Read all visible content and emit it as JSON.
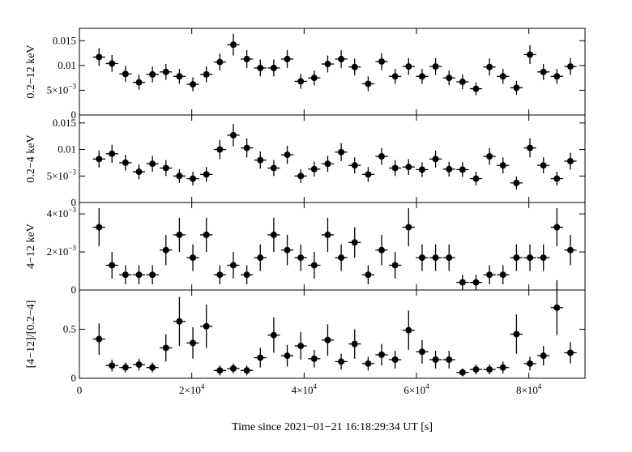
{
  "chart_data": {
    "type": "scatter",
    "xlabel": "Time since 2021−01−21 16:18:29:34 UT [s]",
    "xlim": [
      0,
      90000
    ],
    "x_ticks": [
      {
        "value": 0,
        "label": "0",
        "exp": ""
      },
      {
        "value": 20000,
        "label": "2×10",
        "exp": "4"
      },
      {
        "value": 40000,
        "label": "4×10",
        "exp": "4"
      },
      {
        "value": 60000,
        "label": "6×10",
        "exp": "4"
      },
      {
        "value": 80000,
        "label": "8×10",
        "exp": "4"
      }
    ],
    "bin_halfwidth": 1100,
    "x": [
      3500,
      5800,
      8200,
      10600,
      13000,
      15400,
      17800,
      20200,
      22600,
      25000,
      27400,
      29800,
      32200,
      34600,
      37000,
      39400,
      41800,
      44200,
      46600,
      49000,
      51400,
      53800,
      56200,
      58600,
      61000,
      63400,
      65800,
      68200,
      70600,
      73000,
      75400,
      77800,
      80200,
      82600,
      85000,
      87400
    ],
    "panels": [
      {
        "ylabel": "0.2−12 keV",
        "ylim": [
          0,
          0.0175
        ],
        "y_ticks": [
          {
            "value": 0,
            "label": "0",
            "exp": ""
          },
          {
            "value": 0.005,
            "label": "5×10",
            "exp": "−3"
          },
          {
            "value": 0.01,
            "label": "0.01",
            "exp": ""
          },
          {
            "value": 0.015,
            "label": "0.015",
            "exp": ""
          }
        ],
        "values": [
          0.0117,
          0.0104,
          0.0083,
          0.0066,
          0.0082,
          0.0087,
          0.0078,
          0.0062,
          0.0082,
          0.0107,
          0.0142,
          0.0113,
          0.0095,
          0.0095,
          0.0113,
          0.0068,
          0.0075,
          0.0103,
          0.0113,
          0.0097,
          0.0063,
          0.0108,
          0.0078,
          0.0098,
          0.0078,
          0.0098,
          0.0075,
          0.0067,
          0.0053,
          0.0097,
          0.0078,
          0.0055,
          0.0122,
          0.0087,
          0.0078,
          0.0098
        ],
        "errors": [
          0.0018,
          0.0017,
          0.0016,
          0.0015,
          0.0016,
          0.0016,
          0.0015,
          0.0014,
          0.0016,
          0.0017,
          0.0022,
          0.0018,
          0.0017,
          0.0017,
          0.0018,
          0.0015,
          0.0015,
          0.0017,
          0.0018,
          0.0017,
          0.0015,
          0.0017,
          0.0015,
          0.0017,
          0.0015,
          0.0017,
          0.0015,
          0.0015,
          0.0013,
          0.0017,
          0.0015,
          0.0014,
          0.0019,
          0.0016,
          0.0015,
          0.0017
        ]
      },
      {
        "ylabel": "0.2−4 keV",
        "ylim": [
          0,
          0.0165
        ],
        "y_ticks": [
          {
            "value": 0,
            "label": "0",
            "exp": ""
          },
          {
            "value": 0.005,
            "label": "5×10",
            "exp": "−3"
          },
          {
            "value": 0.01,
            "label": "0.01",
            "exp": ""
          },
          {
            "value": 0.015,
            "label": "0.015",
            "exp": ""
          }
        ],
        "values": [
          0.0082,
          0.0092,
          0.0075,
          0.0058,
          0.0073,
          0.0065,
          0.005,
          0.0045,
          0.0053,
          0.01,
          0.0127,
          0.0103,
          0.008,
          0.0065,
          0.009,
          0.005,
          0.0063,
          0.0073,
          0.0095,
          0.007,
          0.0053,
          0.0087,
          0.0065,
          0.0067,
          0.0062,
          0.0082,
          0.0063,
          0.0062,
          0.0045,
          0.0087,
          0.007,
          0.0037,
          0.0103,
          0.007,
          0.0045,
          0.0078
        ],
        "errors": [
          0.0016,
          0.0017,
          0.0015,
          0.0014,
          0.0015,
          0.0015,
          0.0013,
          0.0013,
          0.0014,
          0.0018,
          0.0021,
          0.0018,
          0.0016,
          0.0015,
          0.0017,
          0.0013,
          0.0014,
          0.0015,
          0.0017,
          0.0015,
          0.0014,
          0.0016,
          0.0015,
          0.0015,
          0.0014,
          0.0016,
          0.0014,
          0.0014,
          0.0013,
          0.0016,
          0.0015,
          0.0012,
          0.0018,
          0.0015,
          0.0013,
          0.0016
        ]
      },
      {
        "ylabel": "4−12 keV",
        "ylim": [
          0,
          0.0046
        ],
        "y_ticks": [
          {
            "value": 0,
            "label": "0",
            "exp": ""
          },
          {
            "value": 0.002,
            "label": "2×10",
            "exp": "−3"
          },
          {
            "value": 0.004,
            "label": "4×10",
            "exp": "−3"
          }
        ],
        "values": [
          0.0033,
          0.0013,
          0.0008,
          0.0008,
          0.0008,
          0.0021,
          0.0029,
          0.0017,
          0.0029,
          0.0008,
          0.0013,
          0.0008,
          0.0017,
          0.0029,
          0.0021,
          0.0017,
          0.0013,
          0.0029,
          0.0017,
          0.0025,
          0.0008,
          0.0021,
          0.0013,
          0.0033,
          0.0017,
          0.0017,
          0.0017,
          0.0004,
          0.0004,
          0.0008,
          0.0008,
          0.0017,
          0.0017,
          0.0017,
          0.0033,
          0.0021
        ],
        "errors": [
          0.001,
          0.0007,
          0.0005,
          0.0005,
          0.0005,
          0.0008,
          0.0009,
          0.0007,
          0.0009,
          0.0005,
          0.0007,
          0.0005,
          0.0007,
          0.0009,
          0.0008,
          0.0007,
          0.0007,
          0.0009,
          0.0007,
          0.0008,
          0.0005,
          0.0008,
          0.0007,
          0.001,
          0.0007,
          0.0007,
          0.0007,
          0.0004,
          0.0004,
          0.0005,
          0.0005,
          0.0007,
          0.0007,
          0.0007,
          0.001,
          0.0008
        ]
      },
      {
        "ylabel": "[4−12]/[0.2−4]",
        "ylim": [
          0,
          0.9
        ],
        "y_ticks": [
          {
            "value": 0,
            "label": "0",
            "exp": ""
          },
          {
            "value": 0.5,
            "label": "0.5",
            "exp": ""
          }
        ],
        "values": [
          0.4,
          0.13,
          0.11,
          0.14,
          0.11,
          0.31,
          0.58,
          0.36,
          0.53,
          0.08,
          0.1,
          0.08,
          0.21,
          0.44,
          0.23,
          0.33,
          0.2,
          0.39,
          0.17,
          0.35,
          0.15,
          0.24,
          0.19,
          0.49,
          0.27,
          0.19,
          0.19,
          0.06,
          0.09,
          0.09,
          0.11,
          0.45,
          0.15,
          0.23,
          0.72,
          0.26
        ],
        "errors": [
          0.16,
          0.06,
          0.05,
          0.06,
          0.05,
          0.14,
          0.25,
          0.16,
          0.22,
          0.05,
          0.05,
          0.05,
          0.1,
          0.18,
          0.11,
          0.14,
          0.09,
          0.16,
          0.08,
          0.15,
          0.07,
          0.11,
          0.09,
          0.2,
          0.12,
          0.09,
          0.09,
          0.04,
          0.05,
          0.05,
          0.06,
          0.2,
          0.07,
          0.1,
          0.28,
          0.11
        ]
      }
    ],
    "grid": false
  }
}
